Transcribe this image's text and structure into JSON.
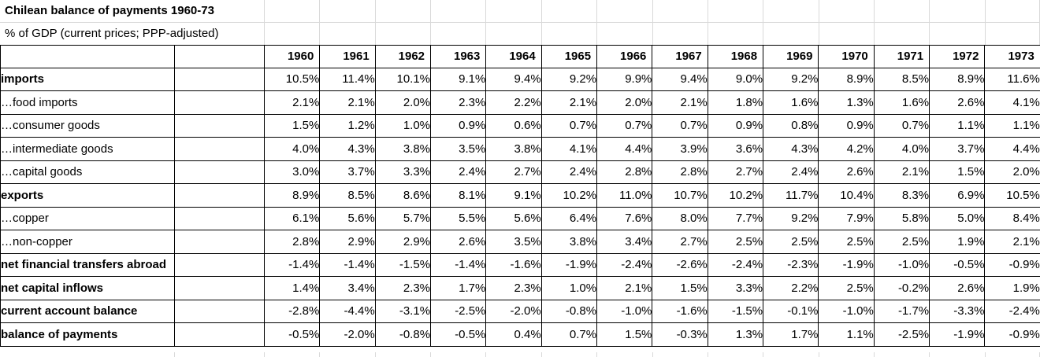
{
  "title": "Chilean balance of payments 1960-73",
  "subtitle": "% of GDP (current prices; PPP-adjusted)",
  "chart_data": {
    "type": "table",
    "title": "Chilean balance of payments 1960-73",
    "subtitle": "% of GDP (current prices; PPP-adjusted)",
    "unit": "% of GDP",
    "columns": [
      "1960",
      "1961",
      "1962",
      "1963",
      "1964",
      "1965",
      "1966",
      "1967",
      "1968",
      "1969",
      "1970",
      "1971",
      "1972",
      "1973"
    ],
    "rows": [
      {
        "label": "imports",
        "bold": true,
        "values": [
          "10.5%",
          "11.4%",
          "10.1%",
          "9.1%",
          "9.4%",
          "9.2%",
          "9.9%",
          "9.4%",
          "9.0%",
          "9.2%",
          "8.9%",
          "8.5%",
          "8.9%",
          "11.6%"
        ]
      },
      {
        "label": "…food imports",
        "bold": false,
        "values": [
          "2.1%",
          "2.1%",
          "2.0%",
          "2.3%",
          "2.2%",
          "2.1%",
          "2.0%",
          "2.1%",
          "1.8%",
          "1.6%",
          "1.3%",
          "1.6%",
          "2.6%",
          "4.1%"
        ]
      },
      {
        "label": "…consumer goods",
        "bold": false,
        "values": [
          "1.5%",
          "1.2%",
          "1.0%",
          "0.9%",
          "0.6%",
          "0.7%",
          "0.7%",
          "0.7%",
          "0.9%",
          "0.8%",
          "0.9%",
          "0.7%",
          "1.1%",
          "1.1%"
        ]
      },
      {
        "label": "…intermediate goods",
        "bold": false,
        "values": [
          "4.0%",
          "4.3%",
          "3.8%",
          "3.5%",
          "3.8%",
          "4.1%",
          "4.4%",
          "3.9%",
          "3.6%",
          "4.3%",
          "4.2%",
          "4.0%",
          "3.7%",
          "4.4%"
        ]
      },
      {
        "label": "…capital goods",
        "bold": false,
        "values": [
          "3.0%",
          "3.7%",
          "3.3%",
          "2.4%",
          "2.7%",
          "2.4%",
          "2.8%",
          "2.8%",
          "2.7%",
          "2.4%",
          "2.6%",
          "2.1%",
          "1.5%",
          "2.0%"
        ]
      },
      {
        "label": "exports",
        "bold": true,
        "values": [
          "8.9%",
          "8.5%",
          "8.6%",
          "8.1%",
          "9.1%",
          "10.2%",
          "11.0%",
          "10.7%",
          "10.2%",
          "11.7%",
          "10.4%",
          "8.3%",
          "6.9%",
          "10.5%"
        ]
      },
      {
        "label": "…copper",
        "bold": false,
        "values": [
          "6.1%",
          "5.6%",
          "5.7%",
          "5.5%",
          "5.6%",
          "6.4%",
          "7.6%",
          "8.0%",
          "7.7%",
          "9.2%",
          "7.9%",
          "5.8%",
          "5.0%",
          "8.4%"
        ]
      },
      {
        "label": "…non-copper",
        "bold": false,
        "values": [
          "2.8%",
          "2.9%",
          "2.9%",
          "2.6%",
          "3.5%",
          "3.8%",
          "3.4%",
          "2.7%",
          "2.5%",
          "2.5%",
          "2.5%",
          "2.5%",
          "1.9%",
          "2.1%"
        ]
      },
      {
        "label": "net financial transfers abroad",
        "bold": true,
        "values": [
          "-1.4%",
          "-1.4%",
          "-1.5%",
          "-1.4%",
          "-1.6%",
          "-1.9%",
          "-2.4%",
          "-2.6%",
          "-2.4%",
          "-2.3%",
          "-1.9%",
          "-1.0%",
          "-0.5%",
          "-0.9%"
        ]
      },
      {
        "label": "net capital inflows",
        "bold": true,
        "values": [
          "1.4%",
          "3.4%",
          "2.3%",
          "1.7%",
          "2.3%",
          "1.0%",
          "2.1%",
          "1.5%",
          "3.3%",
          "2.2%",
          "2.5%",
          "-0.2%",
          "2.6%",
          "1.9%"
        ]
      },
      {
        "label": "current account balance",
        "bold": true,
        "values": [
          "-2.8%",
          "-4.4%",
          "-3.1%",
          "-2.5%",
          "-2.0%",
          "-0.8%",
          "-1.0%",
          "-1.6%",
          "-1.5%",
          "-0.1%",
          "-1.0%",
          "-1.7%",
          "-3.3%",
          "-2.4%"
        ]
      },
      {
        "label": "balance of payments",
        "bold": true,
        "values": [
          "-0.5%",
          "-2.0%",
          "-0.8%",
          "-0.5%",
          "0.4%",
          "0.7%",
          "1.5%",
          "-0.3%",
          "1.3%",
          "1.7%",
          "1.1%",
          "-2.5%",
          "-1.9%",
          "-0.9%"
        ]
      }
    ]
  },
  "colors": {
    "border": "#000000",
    "gridline": "#d9d9d9",
    "background": "#ffffff",
    "text": "#000000"
  }
}
